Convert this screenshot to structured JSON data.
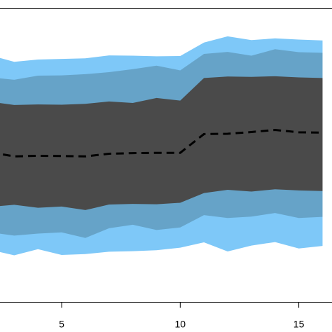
{
  "chart_data": {
    "type": "area",
    "title": "",
    "xlabel": "",
    "ylabel": "",
    "xlim": [
      2.4,
      16.4
    ],
    "ylim": [
      0,
      100
    ],
    "x": [
      2,
      3,
      4,
      5,
      6,
      7,
      8,
      9,
      10,
      11,
      12,
      13,
      14,
      15,
      16
    ],
    "x_ticks": [
      5,
      10,
      15
    ],
    "x_tick_labels": [
      "5",
      "10",
      "15"
    ],
    "grid": false,
    "legend": "none",
    "colors": {
      "outer_band": "#7ec8f8",
      "middle_band": "#66a3c8",
      "inner_band": "#4a4a4a",
      "median": "#000000",
      "frame": "#000000",
      "background": "#ffffff"
    },
    "series": [
      {
        "role": "outer-upper",
        "values": [
          84.1,
          81.9,
          82.7,
          82.9,
          83.1,
          84.1,
          84.0,
          83.8,
          83.9,
          88.5,
          90.6,
          89.3,
          89.9,
          89.5,
          89.2
        ]
      },
      {
        "role": "middle-upper",
        "values": [
          76.6,
          75.8,
          77.2,
          77.3,
          77.7,
          78.4,
          79.4,
          80.6,
          79.0,
          84.6,
          85.3,
          84.0,
          86.2,
          85.2,
          85.0
        ]
      },
      {
        "role": "inner-upper",
        "values": [
          68.3,
          67.2,
          67.4,
          67.3,
          67.6,
          68.4,
          67.9,
          69.6,
          68.7,
          76.4,
          76.9,
          76.8,
          77.0,
          76.6,
          76.4
        ]
      },
      {
        "role": "median",
        "values": [
          51.1,
          49.7,
          49.9,
          49.8,
          49.7,
          50.6,
          50.8,
          50.9,
          50.9,
          57.3,
          57.4,
          58.0,
          58.7,
          57.9,
          57.8
        ]
      },
      {
        "role": "inner-lower",
        "values": [
          32.5,
          33.2,
          32.2,
          32.6,
          31.4,
          33.3,
          33.5,
          33.4,
          33.9,
          37.2,
          38.3,
          37.7,
          38.5,
          38.1,
          37.9
        ]
      },
      {
        "role": "middle-lower",
        "values": [
          23.8,
          22.7,
          23.4,
          23.8,
          21.9,
          25.2,
          26.4,
          24.6,
          25.5,
          29.7,
          28.7,
          29.2,
          30.4,
          28.7,
          29.1
        ]
      },
      {
        "role": "outer-lower",
        "values": [
          17.8,
          16.0,
          18.1,
          16.1,
          16.4,
          17.2,
          17.4,
          17.7,
          18.6,
          20.4,
          17.3,
          19.3,
          20.5,
          18.3,
          19.2
        ]
      }
    ]
  }
}
